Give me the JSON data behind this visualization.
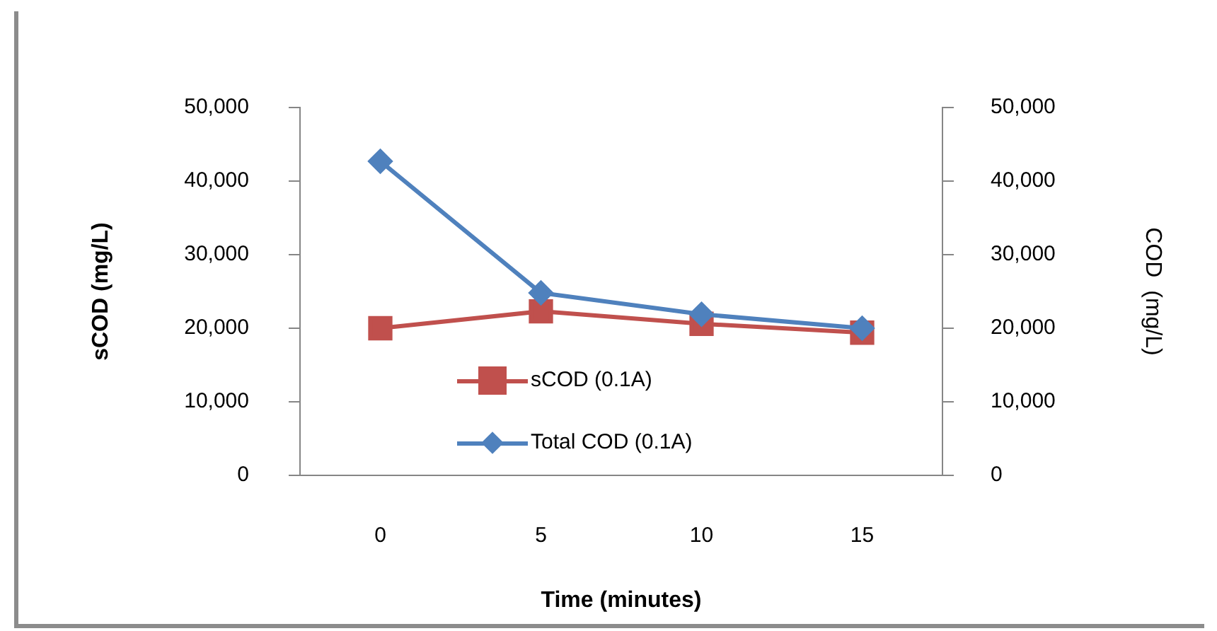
{
  "chart_data": {
    "type": "line",
    "xlabel": "Time (minutes)",
    "ylabel": "sCOD (mg/L)",
    "y2label": "COD  (mg/L)",
    "categories": [
      "0",
      "5",
      "10",
      "15"
    ],
    "series": [
      {
        "name": "sCOD (0.1A)",
        "color": "#c0504d",
        "values": [
          20000,
          22300,
          20600,
          19400
        ],
        "marker": "square"
      },
      {
        "name": "Total COD (0.1A)",
        "color": "#4f81bd",
        "values": [
          42700,
          24800,
          21900,
          20000
        ],
        "marker": "diamond",
        "axis": "y2"
      }
    ],
    "ylim": [
      0,
      50000
    ],
    "yticks": [
      0,
      {
        "value": 10000,
        "label": "10,000"
      },
      {
        "value": 20000,
        "label": "20,000"
      },
      {
        "value": 30000,
        "label": "30,000"
      },
      {
        "value": 40000,
        "label": "40,000"
      },
      {
        "value": 50000,
        "label": "50,000"
      }
    ],
    "y2lim": [
      0,
      50000
    ],
    "y2ticks": [
      0,
      {
        "value": 10000,
        "label": "10,000"
      },
      {
        "value": 20000,
        "label": "20,000"
      },
      {
        "value": 30000,
        "label": "30,000"
      },
      {
        "value": 40000,
        "label": "40,000"
      },
      {
        "value": 50000,
        "label": "50,000"
      }
    ],
    "legend": "bottom"
  }
}
